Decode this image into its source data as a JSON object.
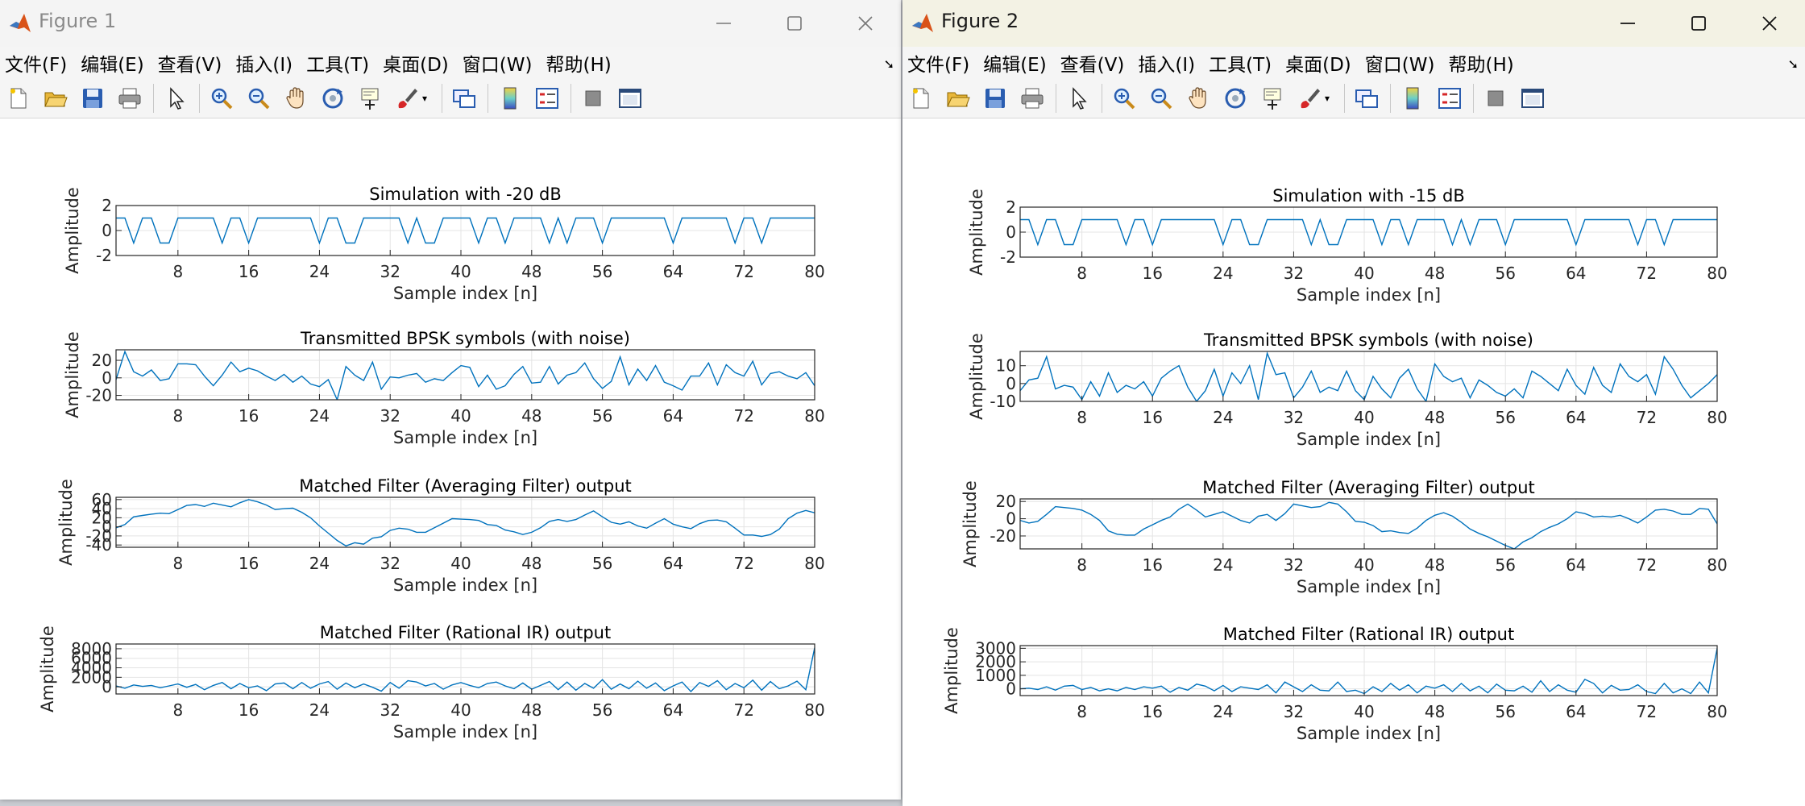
{
  "windows": [
    {
      "title": "Figure 1",
      "focused": false,
      "subplots": [
        {
          "title": "Simulation with -20 dB",
          "ylabel": "Amplitude",
          "xlabel": "Sample index [n]",
          "ylim": [
            -2,
            2
          ],
          "yticks": [
            -2,
            0,
            2
          ],
          "xticks": [
            8,
            16,
            24,
            32,
            40,
            48,
            56,
            64,
            72,
            80
          ]
        },
        {
          "title": "Transmitted BPSK symbols (with noise)",
          "ylabel": "Amplitude",
          "xlabel": "Sample index [n]",
          "ylim": [
            -25,
            32
          ],
          "yticks": [
            -20,
            0,
            20
          ],
          "xticks": [
            8,
            16,
            24,
            32,
            40,
            48,
            56,
            64,
            72,
            80
          ]
        },
        {
          "title": "Matched Filter (Averaging Filter) output",
          "ylabel": "Amplitude",
          "xlabel": "Sample index [n]",
          "ylim": [
            -45,
            65
          ],
          "yticks": [
            -40,
            -20,
            0,
            20,
            40,
            60
          ],
          "xticks": [
            8,
            16,
            24,
            32,
            40,
            48,
            56,
            64,
            72,
            80
          ]
        },
        {
          "title": "Matched Filter (Rational IR) output",
          "ylabel": "Amplitude",
          "xlabel": "Sample index [n]",
          "ylim": [
            -1500,
            9000
          ],
          "yticks": [
            0,
            2000,
            4000,
            6000,
            8000
          ],
          "xticks": [
            8,
            16,
            24,
            32,
            40,
            48,
            56,
            64,
            72,
            80
          ]
        }
      ]
    },
    {
      "title": "Figure 2",
      "focused": true,
      "subplots": [
        {
          "title": "Simulation with -15 dB",
          "ylabel": "Amplitude",
          "xlabel": "Sample index [n]",
          "ylim": [
            -2,
            2
          ],
          "yticks": [
            -2,
            0,
            2
          ],
          "xticks": [
            8,
            16,
            24,
            32,
            40,
            48,
            56,
            64,
            72,
            80
          ]
        },
        {
          "title": "Transmitted BPSK symbols (with noise)",
          "ylabel": "Amplitude",
          "xlabel": "Sample index [n]",
          "ylim": [
            -10,
            18
          ],
          "yticks": [
            -10,
            0,
            10
          ],
          "xticks": [
            8,
            16,
            24,
            32,
            40,
            48,
            56,
            64,
            72,
            80
          ]
        },
        {
          "title": "Matched Filter (Averaging Filter) output",
          "ylabel": "Amplitude",
          "xlabel": "Sample index [n]",
          "ylim": [
            -35,
            23
          ],
          "yticks": [
            -20,
            0,
            20
          ],
          "xticks": [
            8,
            16,
            24,
            32,
            40,
            48,
            56,
            64,
            72,
            80
          ]
        },
        {
          "title": "Matched Filter (Rational IR) output",
          "ylabel": "Amplitude",
          "xlabel": "Sample index [n]",
          "ylim": [
            -500,
            3200
          ],
          "yticks": [
            0,
            1000,
            2000,
            3000
          ],
          "xticks": [
            8,
            16,
            24,
            32,
            40,
            48,
            56,
            64,
            72,
            80
          ]
        }
      ]
    }
  ],
  "menu": [
    "文件(F)",
    "编辑(E)",
    "查看(V)",
    "插入(I)",
    "工具(T)",
    "桌面(D)",
    "窗口(W)",
    "帮助(H)"
  ],
  "toolbar_icons": [
    "new-figure-icon",
    "open-file-icon",
    "save-icon",
    "print-icon",
    "edit-plot-arrow-icon",
    "zoom-in-icon",
    "zoom-out-icon",
    "pan-hand-icon",
    "rotate-3d-icon",
    "data-cursor-icon",
    "brush-icon",
    "link-plot-icon",
    "colorbar-icon",
    "legend-icon",
    "hide-plot-tools-icon",
    "show-plot-tools-icon"
  ],
  "colors": {
    "line": "#0072BD",
    "grid": "#e4e4e4",
    "axis": "#262626"
  },
  "chart_data": [
    {
      "type": "line",
      "figure": "Figure 1",
      "title": "Simulation with -20 dB",
      "xlabel": "Sample index [n]",
      "ylabel": "Amplitude",
      "xlim": [
        1,
        80
      ],
      "ylim": [
        -2,
        2
      ],
      "grid": true,
      "series": [
        {
          "x_start": 1,
          "values": [
            1,
            1,
            -1,
            1,
            1,
            -1,
            -1,
            1,
            1,
            1,
            1,
            1,
            -1,
            1,
            1,
            -1,
            1,
            1,
            1,
            1,
            1,
            1,
            1,
            -1,
            1,
            1,
            -1,
            -1,
            1,
            1,
            1,
            1,
            1,
            -1,
            1,
            -1,
            -1,
            1,
            1,
            1,
            1,
            -1,
            1,
            1,
            -1,
            1,
            1,
            1,
            1,
            -1,
            1,
            -1,
            1,
            1,
            1,
            -1,
            1,
            1,
            1,
            1,
            1,
            1,
            1,
            -1,
            1,
            1,
            1,
            1,
            1,
            1,
            -1,
            1,
            1,
            -1,
            1,
            1,
            1,
            1,
            1,
            1
          ]
        }
      ]
    },
    {
      "type": "line",
      "figure": "Figure 1",
      "title": "Transmitted BPSK symbols (with noise)",
      "xlabel": "Sample index [n]",
      "ylabel": "Amplitude",
      "xlim": [
        1,
        80
      ],
      "ylim": [
        -25,
        32
      ],
      "grid": true,
      "series": [
        {
          "x_start": 1,
          "values": [
            -2,
            30,
            7,
            2,
            9,
            -3,
            -1,
            16,
            16,
            15,
            2,
            -9,
            3,
            18,
            7,
            11,
            8,
            2,
            -3,
            4,
            -5,
            2,
            -7,
            -10,
            -2,
            -25,
            13,
            3,
            -3,
            18,
            -13,
            1,
            0,
            3,
            5,
            -5,
            -1,
            -3,
            6,
            14,
            12,
            -10,
            3,
            -13,
            -9,
            4,
            13,
            -6,
            -5,
            13,
            -7,
            3,
            6,
            17,
            -1,
            -12,
            -4,
            24,
            -8,
            10,
            -3,
            14,
            -5,
            -9,
            -14,
            2,
            2,
            17,
            -8,
            15,
            6,
            2,
            19,
            -8,
            5,
            7,
            2,
            -1,
            6,
            -9
          ]
        }
      ]
    },
    {
      "type": "line",
      "figure": "Figure 1",
      "title": "Matched Filter (Averaging Filter) output",
      "xlabel": "Sample index [n]",
      "ylabel": "Amplitude",
      "xlim": [
        1,
        80
      ],
      "ylim": [
        -45,
        65
      ],
      "grid": true,
      "series": [
        {
          "x_start": 1,
          "values": [
            -2,
            5,
            22,
            25,
            28,
            30,
            29,
            38,
            47,
            49,
            45,
            52,
            48,
            44,
            53,
            60,
            55,
            48,
            38,
            40,
            41,
            32,
            20,
            2,
            -14,
            -30,
            -42,
            -35,
            -38,
            -25,
            -22,
            -8,
            -3,
            -5,
            -12,
            -12,
            -2,
            8,
            18,
            17,
            16,
            14,
            5,
            3,
            -7,
            -11,
            -17,
            -12,
            -2,
            12,
            16,
            12,
            16,
            26,
            35,
            22,
            10,
            6,
            11,
            2,
            -3,
            8,
            18,
            6,
            0,
            -4,
            7,
            14,
            15,
            11,
            -3,
            -18,
            -18,
            -21,
            -17,
            -5,
            18,
            30,
            36,
            31
          ]
        }
      ]
    },
    {
      "type": "line",
      "figure": "Figure 1",
      "title": "Matched Filter (Rational IR) output",
      "xlabel": "Sample index [n]",
      "ylabel": "Amplitude",
      "xlim": [
        1,
        80
      ],
      "ylim": [
        -1500,
        9000
      ],
      "grid": true,
      "series": [
        {
          "x_start": 1,
          "values": [
            200,
            -300,
            400,
            100,
            300,
            -200,
            200,
            600,
            -100,
            500,
            -600,
            300,
            900,
            -400,
            700,
            -200,
            200,
            -800,
            600,
            800,
            -400,
            900,
            -300,
            600,
            1100,
            -500,
            800,
            -200,
            600,
            -100,
            -900,
            900,
            -300,
            1300,
            1000,
            200,
            700,
            -500,
            400,
            900,
            300,
            -200,
            700,
            1000,
            200,
            -400,
            800,
            -500,
            300,
            1100,
            -600,
            1000,
            -700,
            700,
            -300,
            1500,
            -500,
            600,
            -400,
            1200,
            -300,
            800,
            -800,
            200,
            1000,
            -1000,
            900,
            100,
            1300,
            -600,
            700,
            -200,
            1400,
            -700,
            1100,
            -400,
            200,
            1200,
            -600,
            8200
          ]
        }
      ]
    },
    {
      "type": "line",
      "figure": "Figure 2",
      "title": "Simulation with -15 dB",
      "xlabel": "Sample index [n]",
      "ylabel": "Amplitude",
      "xlim": [
        1,
        80
      ],
      "ylim": [
        -2,
        2
      ],
      "grid": true,
      "series": [
        {
          "x_start": 1,
          "values": [
            1,
            1,
            -1,
            1,
            1,
            -1,
            -1,
            1,
            1,
            1,
            1,
            1,
            -1,
            1,
            1,
            -1,
            1,
            1,
            1,
            1,
            1,
            1,
            1,
            -1,
            1,
            1,
            -1,
            -1,
            1,
            1,
            1,
            1,
            1,
            -1,
            1,
            -1,
            -1,
            1,
            1,
            1,
            1,
            -1,
            1,
            1,
            -1,
            1,
            1,
            1,
            1,
            -1,
            1,
            -1,
            1,
            1,
            1,
            -1,
            1,
            1,
            1,
            1,
            1,
            1,
            1,
            -1,
            1,
            1,
            1,
            1,
            1,
            1,
            -1,
            1,
            1,
            -1,
            1,
            1,
            1,
            1,
            1,
            1
          ]
        }
      ]
    },
    {
      "type": "line",
      "figure": "Figure 2",
      "title": "Transmitted BPSK symbols (with noise)",
      "xlabel": "Sample index [n]",
      "ylabel": "Amplitude",
      "xlim": [
        1,
        80
      ],
      "ylim": [
        -10,
        18
      ],
      "grid": true,
      "series": [
        {
          "x_start": 1,
          "values": [
            -4,
            2,
            3,
            15,
            -3,
            -1,
            -2,
            -9,
            1,
            -7,
            6,
            -5,
            -1,
            -3,
            1,
            -7,
            3,
            7,
            10,
            -2,
            -10,
            -4,
            8,
            -7,
            6,
            0,
            10,
            -9,
            17,
            5,
            6,
            -8,
            -2,
            7,
            -5,
            -2,
            -4,
            7,
            -4,
            -9,
            4,
            -3,
            -8,
            3,
            8,
            -3,
            -10,
            11,
            4,
            1,
            3,
            -8,
            2,
            -1,
            -5,
            -7,
            -3,
            -8,
            7,
            4,
            0,
            -4,
            8,
            -1,
            -6,
            9,
            -1,
            -5,
            11,
            4,
            1,
            5,
            -6,
            15,
            8,
            -1,
            -8,
            -4,
            0,
            5
          ]
        }
      ]
    },
    {
      "type": "line",
      "figure": "Figure 2",
      "title": "Matched Filter (Averaging Filter) output",
      "xlabel": "Sample index [n]",
      "ylabel": "Amplitude",
      "xlim": [
        1,
        80
      ],
      "ylim": [
        -35,
        23
      ],
      "grid": true,
      "series": [
        {
          "x_start": 1,
          "values": [
            -2,
            -5,
            -3,
            5,
            14,
            13,
            12,
            10,
            5,
            -2,
            -14,
            -18,
            -19,
            -19,
            -12,
            -7,
            -2,
            2,
            11,
            17,
            10,
            2,
            5,
            8,
            3,
            -2,
            -5,
            3,
            5,
            -2,
            6,
            17,
            15,
            13,
            14,
            19,
            17,
            8,
            -3,
            -4,
            -8,
            -15,
            -14,
            -16,
            -17,
            -11,
            -2,
            4,
            7,
            3,
            -4,
            -12,
            -17,
            -21,
            -26,
            -31,
            -35,
            -27,
            -22,
            -15,
            -10,
            -6,
            0,
            8,
            6,
            2,
            3,
            2,
            4,
            0,
            -5,
            2,
            10,
            11,
            9,
            5,
            5,
            12,
            11,
            -6
          ]
        }
      ]
    },
    {
      "type": "line",
      "figure": "Figure 2",
      "title": "Matched Filter (Rational IR) output",
      "xlabel": "Sample index [n]",
      "ylabel": "Amplitude",
      "xlim": [
        1,
        80
      ],
      "ylim": [
        -500,
        3200
      ],
      "grid": true,
      "series": [
        {
          "x_start": 1,
          "values": [
            0,
            50,
            -50,
            150,
            -100,
            200,
            250,
            -50,
            100,
            -150,
            0,
            -150,
            100,
            -50,
            150,
            50,
            200,
            -250,
            100,
            -100,
            350,
            200,
            -150,
            250,
            -200,
            150,
            50,
            -50,
            300,
            -300,
            500,
            150,
            -200,
            300,
            -100,
            -150,
            500,
            -200,
            -100,
            -350,
            150,
            -200,
            400,
            -100,
            300,
            -300,
            200,
            50,
            300,
            -200,
            400,
            -150,
            200,
            -300,
            350,
            -100,
            -150,
            200,
            -250,
            600,
            -200,
            300,
            -100,
            -250,
            700,
            400,
            -300,
            250,
            -100,
            -50,
            300,
            -200,
            -350,
            400,
            -300,
            0,
            -350,
            500,
            -300,
            3000
          ]
        }
      ]
    }
  ]
}
